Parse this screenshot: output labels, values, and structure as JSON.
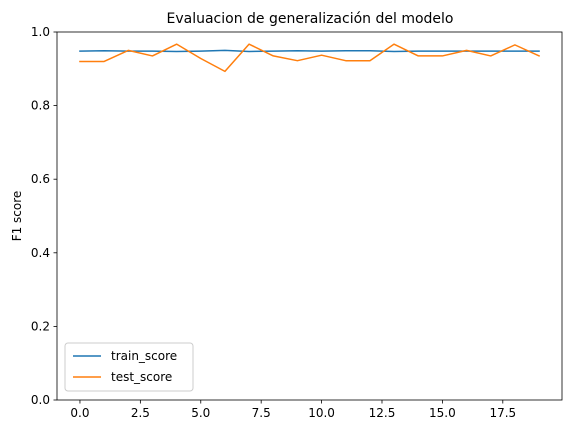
{
  "chart_data": {
    "type": "line",
    "title": "Evaluacion de generalización del modelo",
    "xlabel": "",
    "ylabel": "F1 score",
    "xlim": [
      -0.95,
      19.95
    ],
    "ylim": [
      0,
      1.0
    ],
    "xticks": [
      0.0,
      2.5,
      5.0,
      7.5,
      10.0,
      12.5,
      15.0,
      17.5
    ],
    "xtick_labels": [
      "0.0",
      "2.5",
      "5.0",
      "7.5",
      "10.0",
      "12.5",
      "15.0",
      "17.5"
    ],
    "yticks": [
      0.0,
      0.2,
      0.4,
      0.6,
      0.8,
      1.0
    ],
    "ytick_labels": [
      "0.0",
      "0.2",
      "0.4",
      "0.6",
      "0.8",
      "1.0"
    ],
    "grid": false,
    "legend_position": "lower-left",
    "x": [
      0,
      1,
      2,
      3,
      4,
      5,
      6,
      7,
      8,
      9,
      10,
      11,
      12,
      13,
      14,
      15,
      16,
      17,
      18,
      19
    ],
    "series": [
      {
        "name": "train_score",
        "color": "#1f77b4",
        "values": [
          0.948,
          0.949,
          0.948,
          0.948,
          0.947,
          0.948,
          0.95,
          0.947,
          0.948,
          0.949,
          0.948,
          0.949,
          0.949,
          0.947,
          0.948,
          0.948,
          0.948,
          0.948,
          0.948,
          0.948
        ]
      },
      {
        "name": "test_score",
        "color": "#ff7f0e",
        "values": [
          0.92,
          0.92,
          0.95,
          0.935,
          0.967,
          0.928,
          0.893,
          0.967,
          0.935,
          0.922,
          0.937,
          0.922,
          0.922,
          0.967,
          0.935,
          0.935,
          0.95,
          0.935,
          0.965,
          0.935
        ]
      }
    ]
  }
}
